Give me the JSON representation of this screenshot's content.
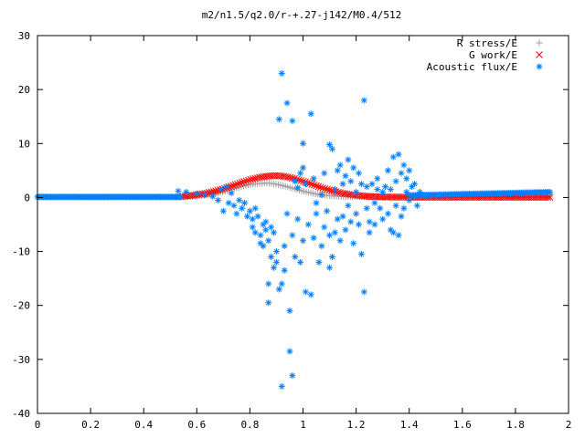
{
  "chart_data": {
    "type": "scatter",
    "title": "m2/n1.5/q2.0/r-+.27-j142/M0.4/512",
    "xlabel": "",
    "ylabel": "",
    "xlim": [
      0,
      2
    ],
    "ylim": [
      -40,
      30
    ],
    "xticks": [
      0,
      0.2,
      0.4,
      0.6,
      0.8,
      1,
      1.2,
      1.4,
      1.6,
      1.8,
      2
    ],
    "xtick_labels": [
      "0",
      "0.2",
      "0.4",
      "0.6",
      "0.8",
      "1",
      "1.2",
      "1.4",
      "1.6",
      "1.8",
      "2"
    ],
    "yticks": [
      30,
      20,
      10,
      0,
      -10,
      -20,
      -30,
      -40
    ],
    "ytick_labels": [
      "30",
      "20",
      "10",
      "0",
      "-10",
      "-20",
      "-30",
      "-40"
    ],
    "grid": false,
    "legend_position": "top-right",
    "series": [
      {
        "name": "R stress/E",
        "marker": "plus",
        "color": "#a0a0a0",
        "curve": {
          "x_start": 0.54,
          "x_end": 1.93,
          "count": 160,
          "peak_x": 0.85,
          "peak_y": 2.6,
          "width": 0.16,
          "tail": 0.1
        }
      },
      {
        "name": "G work/E",
        "marker": "cross",
        "color": "#ff0000",
        "curve": {
          "x_start": 0.54,
          "x_end": 1.93,
          "count": 170,
          "peak_x": 0.89,
          "peak_y": 4.0,
          "width": 0.2,
          "tail": 0.05
        }
      },
      {
        "name": "Acoustic flux/E",
        "marker": "star",
        "color": "#0080ff",
        "baseline_left": {
          "x_start": 0.0,
          "x_end": 0.54,
          "count": 120,
          "y": 0.1
        },
        "baseline_right": {
          "x_start": 1.4,
          "x_end": 1.93,
          "count": 90,
          "y_start": 0.4,
          "y_end": 1.0
        },
        "points": [
          [
            0.53,
            1.2
          ],
          [
            0.56,
            1.0
          ],
          [
            0.6,
            0.7
          ],
          [
            0.63,
            0.5
          ],
          [
            0.66,
            0.2
          ],
          [
            0.68,
            -0.5
          ],
          [
            0.69,
            1.5
          ],
          [
            0.7,
            -2.5
          ],
          [
            0.71,
            2.0
          ],
          [
            0.72,
            -1.0
          ],
          [
            0.73,
            0.8
          ],
          [
            0.74,
            -1.5
          ],
          [
            0.75,
            -3.0
          ],
          [
            0.76,
            -0.5
          ],
          [
            0.77,
            -2.0
          ],
          [
            0.78,
            -1.0
          ],
          [
            0.79,
            -3.5
          ],
          [
            0.8,
            -2.5
          ],
          [
            0.81,
            -4.0
          ],
          [
            0.81,
            -5.5
          ],
          [
            0.82,
            -2.0
          ],
          [
            0.82,
            -6.5
          ],
          [
            0.83,
            -3.5
          ],
          [
            0.84,
            -7.0
          ],
          [
            0.84,
            -8.5
          ],
          [
            0.85,
            -5.0
          ],
          [
            0.85,
            -9.0
          ],
          [
            0.86,
            -6.0
          ],
          [
            0.86,
            -4.5
          ],
          [
            0.87,
            -8.0
          ],
          [
            0.87,
            -16.0
          ],
          [
            0.87,
            -19.5
          ],
          [
            0.88,
            -11.0
          ],
          [
            0.88,
            -5.5
          ],
          [
            0.89,
            -13.0
          ],
          [
            0.89,
            -6.5
          ],
          [
            0.9,
            -10.0
          ],
          [
            0.9,
            -12.0
          ],
          [
            0.91,
            -17.0
          ],
          [
            0.91,
            14.5
          ],
          [
            0.92,
            -16.0
          ],
          [
            0.92,
            -35.0
          ],
          [
            0.92,
            23.0
          ],
          [
            0.93,
            -13.5
          ],
          [
            0.93,
            -9.0
          ],
          [
            0.94,
            -3.0
          ],
          [
            0.94,
            17.5
          ],
          [
            0.95,
            -21.0
          ],
          [
            0.95,
            -28.5
          ],
          [
            0.96,
            -33.0
          ],
          [
            0.96,
            14.2
          ],
          [
            0.96,
            -7.0
          ],
          [
            0.97,
            -11.0
          ],
          [
            0.97,
            3.0
          ],
          [
            0.98,
            1.8
          ],
          [
            0.98,
            -4.0
          ],
          [
            0.99,
            4.5
          ],
          [
            0.99,
            -12.0
          ],
          [
            1.0,
            5.5
          ],
          [
            1.0,
            -8.0
          ],
          [
            1.0,
            10.0
          ],
          [
            1.01,
            -17.5
          ],
          [
            1.01,
            2.5
          ],
          [
            1.02,
            -5.0
          ],
          [
            1.03,
            15.5
          ],
          [
            1.03,
            -18.0
          ],
          [
            1.04,
            -7.5
          ],
          [
            1.04,
            3.5
          ],
          [
            1.05,
            -3.0
          ],
          [
            1.05,
            -1.0
          ],
          [
            1.06,
            -12.0
          ],
          [
            1.07,
            0.5
          ],
          [
            1.07,
            -9.0
          ],
          [
            1.08,
            4.5
          ],
          [
            1.08,
            -5.5
          ],
          [
            1.09,
            -2.5
          ],
          [
            1.1,
            9.8
          ],
          [
            1.1,
            -7.0
          ],
          [
            1.1,
            -13.0
          ],
          [
            1.11,
            -11.0
          ],
          [
            1.11,
            9.0
          ],
          [
            1.12,
            -6.5
          ],
          [
            1.12,
            1.5
          ],
          [
            1.13,
            5.0
          ],
          [
            1.13,
            -4.0
          ],
          [
            1.14,
            -8.0
          ],
          [
            1.14,
            6.0
          ],
          [
            1.15,
            -3.5
          ],
          [
            1.15,
            2.5
          ],
          [
            1.16,
            4.0
          ],
          [
            1.16,
            -6.0
          ],
          [
            1.17,
            7.0
          ],
          [
            1.17,
            -1.5
          ],
          [
            1.18,
            -4.5
          ],
          [
            1.18,
            3.0
          ],
          [
            1.19,
            5.5
          ],
          [
            1.19,
            -8.5
          ],
          [
            1.2,
            -3.0
          ],
          [
            1.2,
            1.0
          ],
          [
            1.21,
            4.5
          ],
          [
            1.21,
            -5.0
          ],
          [
            1.22,
            2.5
          ],
          [
            1.22,
            -10.5
          ],
          [
            1.23,
            18.0
          ],
          [
            1.23,
            -17.5
          ],
          [
            1.24,
            -2.0
          ],
          [
            1.24,
            2.0
          ],
          [
            1.25,
            -6.5
          ],
          [
            1.25,
            -4.5
          ],
          [
            1.26,
            2.5
          ],
          [
            1.27,
            -1.0
          ],
          [
            1.27,
            -5.0
          ],
          [
            1.28,
            1.5
          ],
          [
            1.28,
            3.5
          ],
          [
            1.29,
            -2.0
          ],
          [
            1.3,
            1.0
          ],
          [
            1.3,
            -4.0
          ],
          [
            1.31,
            2.0
          ],
          [
            1.32,
            -3.0
          ],
          [
            1.32,
            5.0
          ],
          [
            1.33,
            -6.0
          ],
          [
            1.33,
            1.5
          ],
          [
            1.34,
            7.5
          ],
          [
            1.34,
            -6.5
          ],
          [
            1.35,
            3.0
          ],
          [
            1.35,
            -1.5
          ],
          [
            1.36,
            8.0
          ],
          [
            1.36,
            -7.0
          ],
          [
            1.37,
            4.5
          ],
          [
            1.37,
            -3.5
          ],
          [
            1.38,
            6.0
          ],
          [
            1.38,
            -2.0
          ],
          [
            1.39,
            3.5
          ],
          [
            1.39,
            1.0
          ],
          [
            1.4,
            5.0
          ],
          [
            1.4,
            -0.5
          ],
          [
            1.41,
            2.0
          ],
          [
            1.42,
            2.5
          ],
          [
            1.43,
            -1.5
          ],
          [
            1.44,
            1.0
          ],
          [
            1.45,
            0.5
          ]
        ]
      }
    ]
  }
}
